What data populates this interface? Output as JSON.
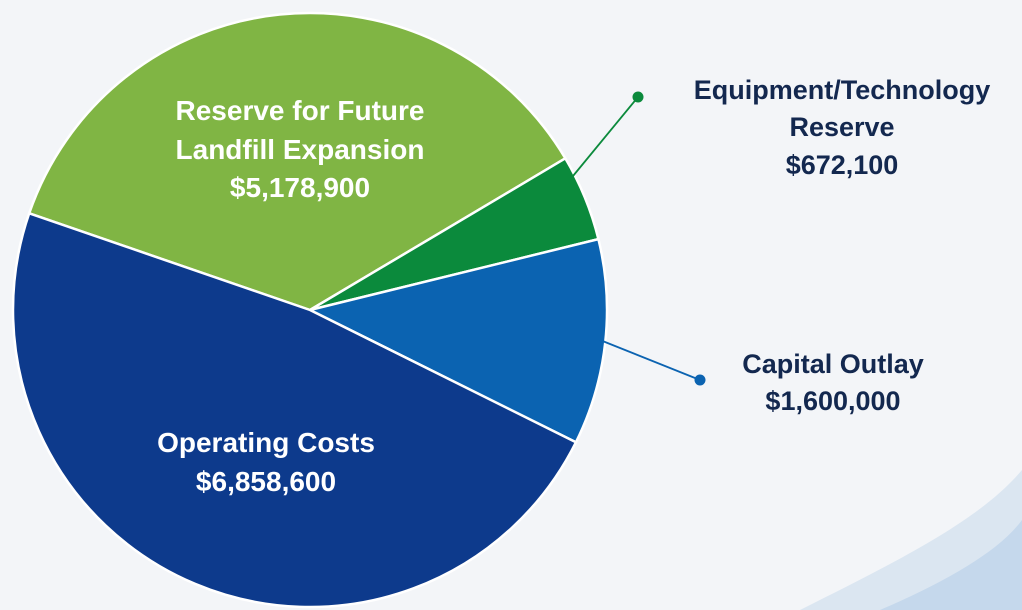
{
  "chart_data": {
    "type": "pie",
    "categories": [
      "Reserve for Future Landfill Expansion",
      "Equipment/Technology Reserve",
      "Capital Outlay",
      "Operating Costs"
    ],
    "values": [
      5178900,
      672100,
      1600000,
      6858600
    ],
    "value_labels": [
      "$5,178,900",
      "$672,100",
      "$1,600,000",
      "$6,858,600"
    ],
    "colors": [
      "#80b544",
      "#0b8a3c",
      "#0b63b1",
      "#0d3a8c"
    ]
  }
}
